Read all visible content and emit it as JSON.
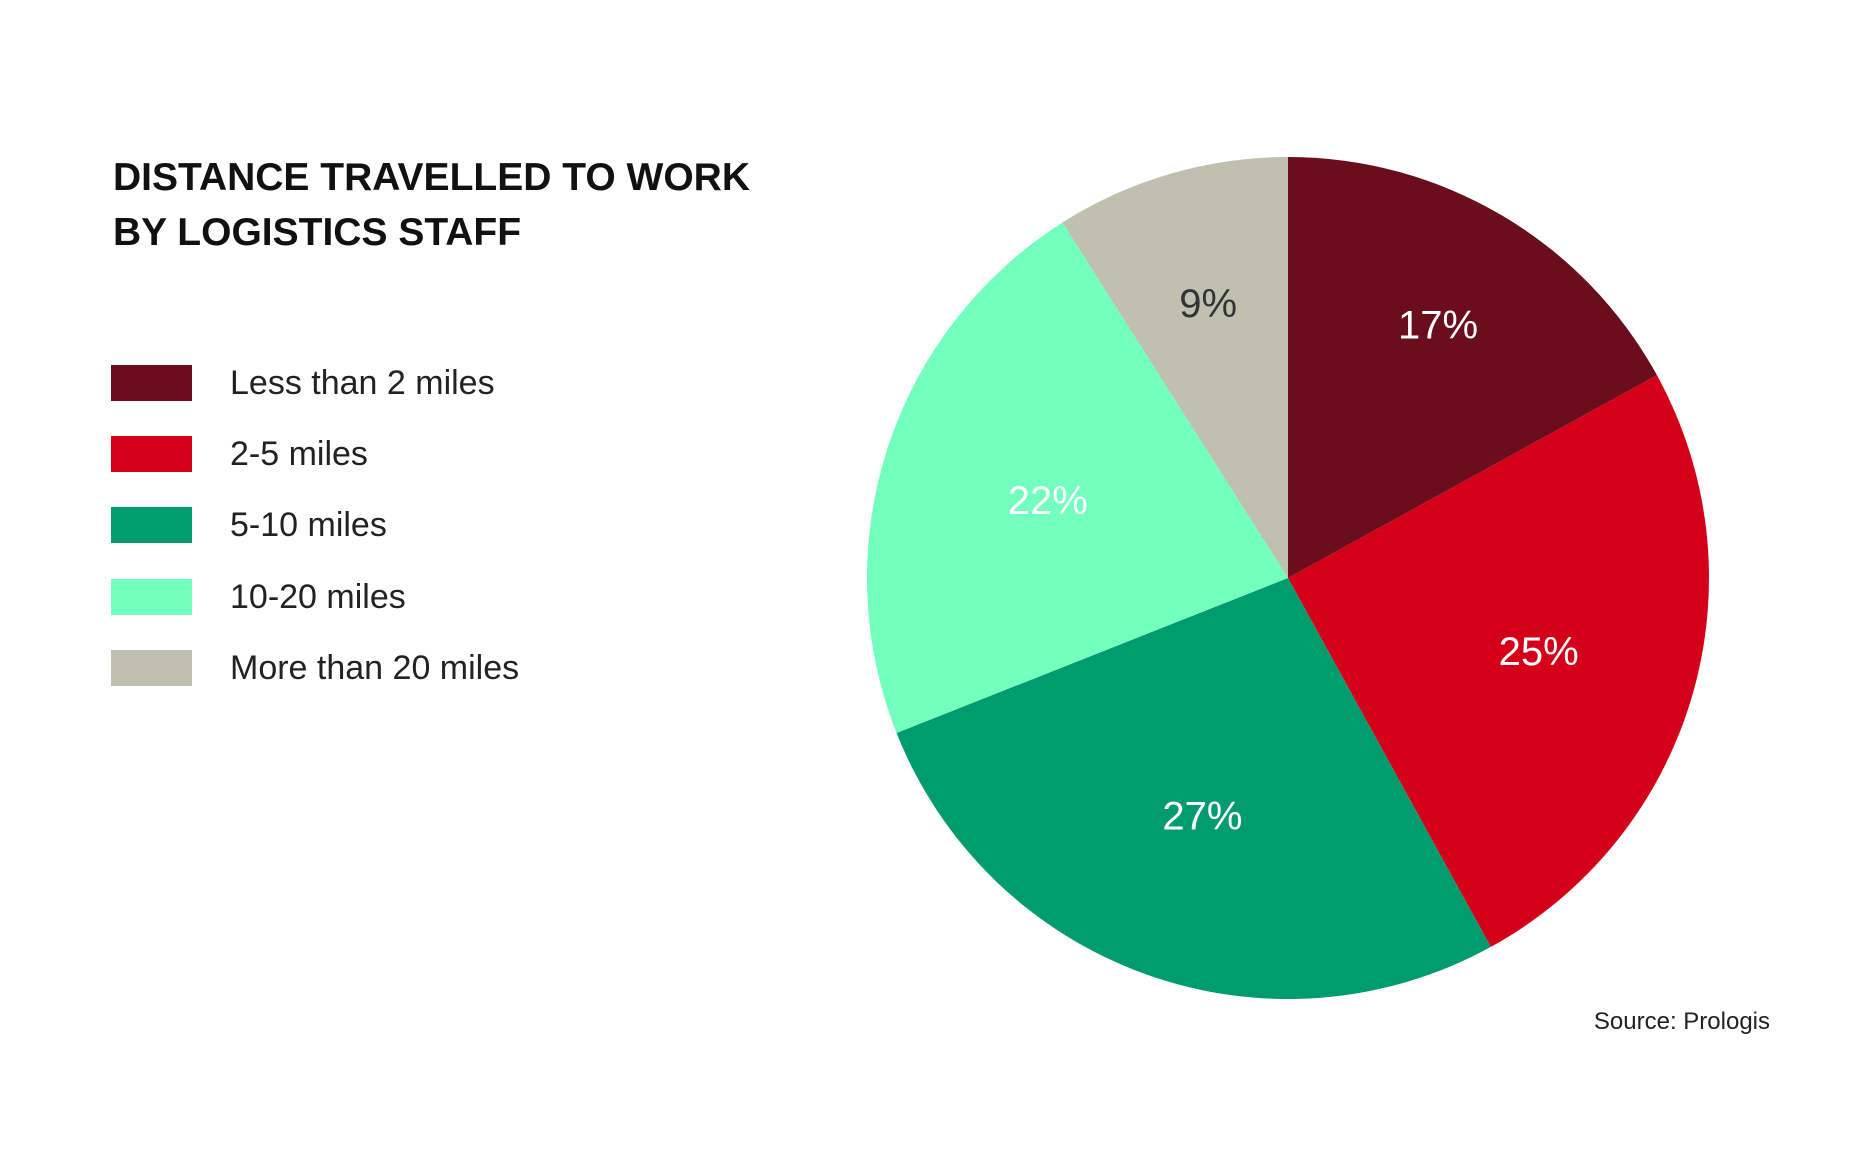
{
  "chart_data": {
    "type": "pie",
    "title": [
      "DISTANCE TRAVELLED TO WORK",
      "BY LOGISTICS STAFF"
    ],
    "categories": [
      "Less than 2 miles",
      "2-5 miles",
      "5-10 miles",
      "10-20 miles",
      "More than 20 miles"
    ],
    "values": [
      17,
      25,
      27,
      22,
      9
    ],
    "data_labels": [
      "17%",
      "25%",
      "27%",
      "22%",
      "9%"
    ],
    "colors": [
      "#6a0d1d",
      "#d4001a",
      "#009b6e",
      "#73ffbe",
      "#bfc0b0"
    ],
    "label_colors": [
      "#ffffff",
      "#ffffff",
      "#ffffff",
      "#ffffff",
      "#333333"
    ],
    "start_angle": "12 o'clock",
    "direction": "clockwise",
    "legend_position": "left",
    "source": "Source: Prologis"
  }
}
